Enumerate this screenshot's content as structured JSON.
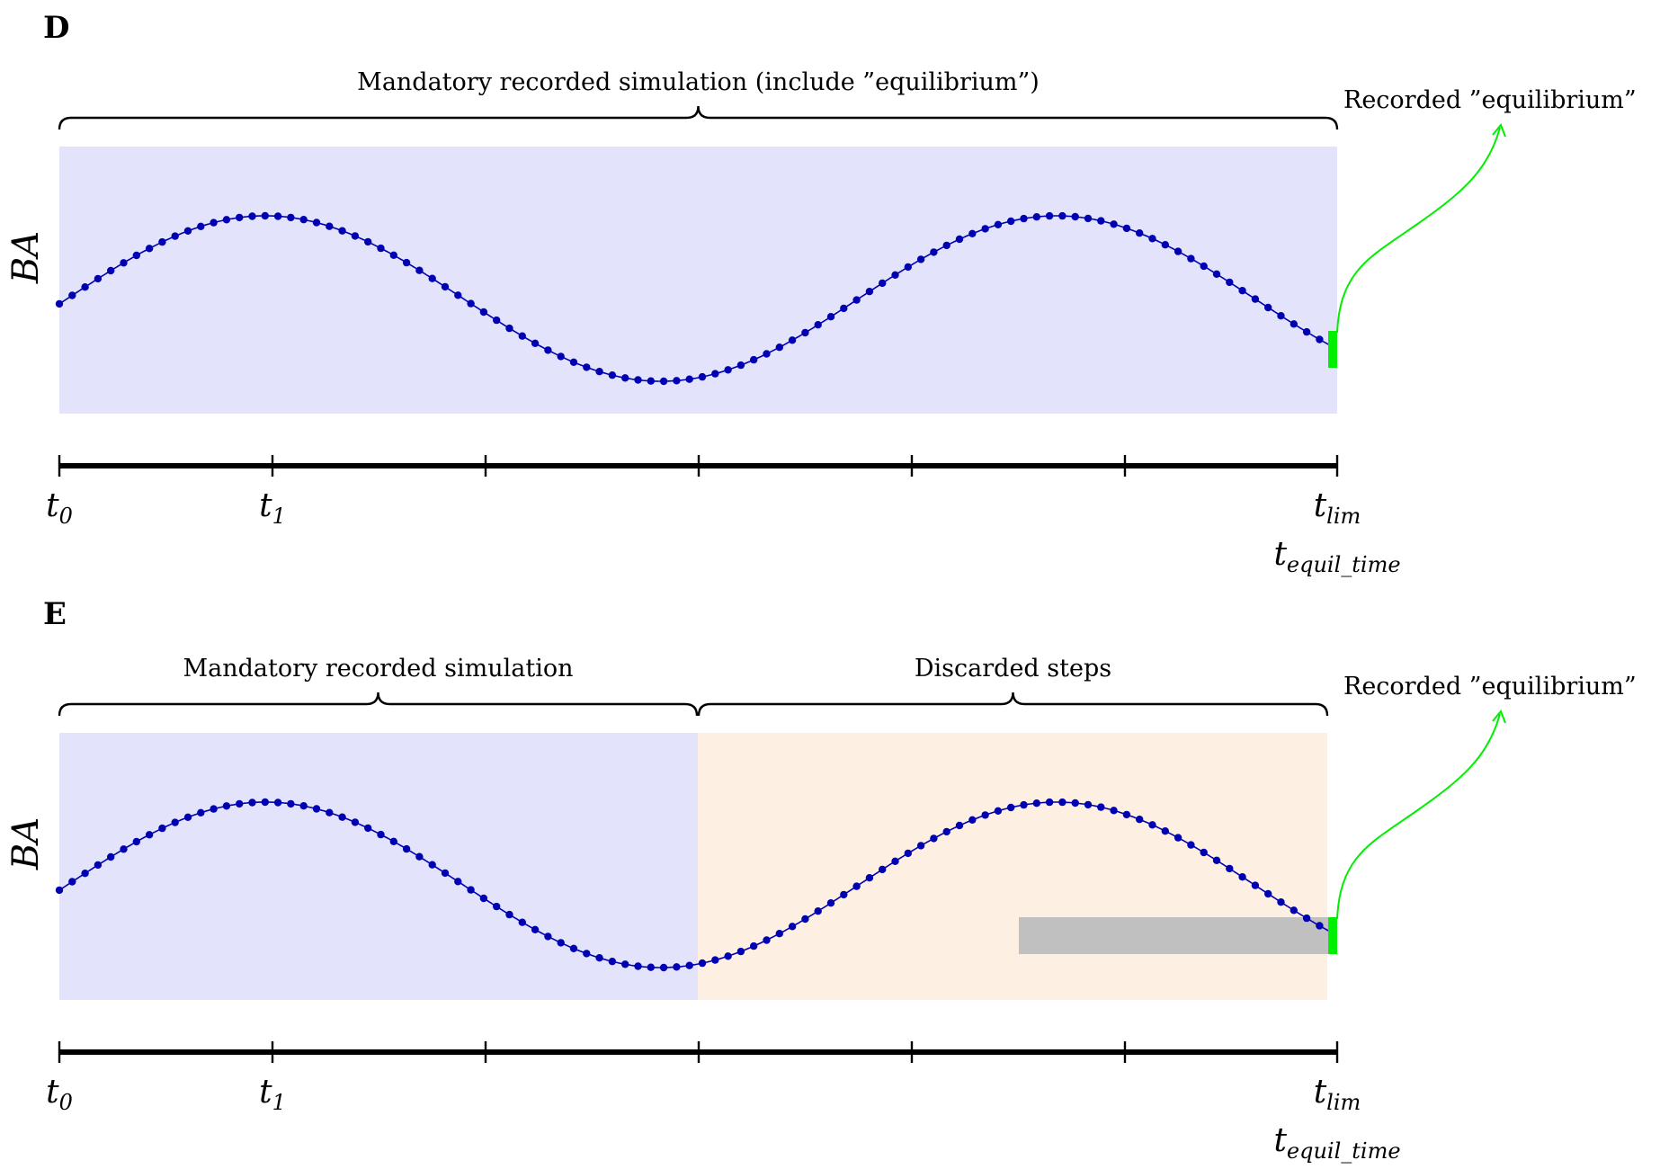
{
  "panels": [
    {
      "id": "D",
      "letter": "D",
      "ylabel": "BA",
      "braces": [
        {
          "label": "Mandatory recorded simulation (include ”equilibrium”)"
        }
      ],
      "equilibrium_label": "Recorded ”equilibrium”",
      "regions": [
        {
          "name": "recorded",
          "color": "#e3e4fb"
        }
      ],
      "has_gray_bar": false,
      "ticks": [
        {
          "main": "t",
          "sub": "0"
        },
        {
          "main": "t",
          "sub": "1"
        },
        {
          "main": "t",
          "sub": "lim"
        }
      ],
      "tick_extra": {
        "main": "t",
        "sub": "equil_time"
      }
    },
    {
      "id": "E",
      "letter": "E",
      "ylabel": "BA",
      "braces": [
        {
          "label": "Mandatory recorded simulation"
        },
        {
          "label": "Discarded steps"
        }
      ],
      "equilibrium_label": "Recorded ”equilibrium”",
      "regions": [
        {
          "name": "recorded",
          "color": "#e3e4fb"
        },
        {
          "name": "discarded",
          "color": "#fdf0e3"
        }
      ],
      "has_gray_bar": true,
      "ticks": [
        {
          "main": "t",
          "sub": "0"
        },
        {
          "main": "t",
          "sub": "1"
        },
        {
          "main": "t",
          "sub": "lim"
        }
      ],
      "tick_extra": {
        "main": "t",
        "sub": "equil_time"
      }
    }
  ],
  "colors": {
    "curve": "#0000b3",
    "equilibrium": "#00ee00",
    "gray_bar": "#c0c0c0",
    "axis": "#000000"
  }
}
